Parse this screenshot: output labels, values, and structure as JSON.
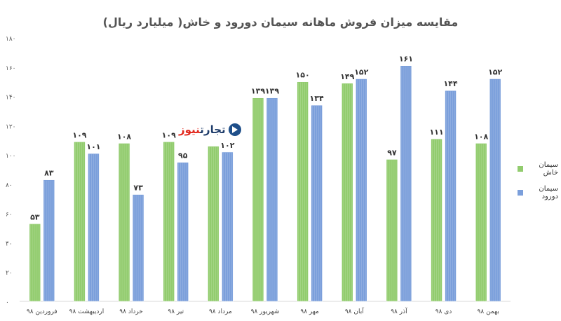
{
  "chart_data": {
    "type": "bar",
    "title": "مقایسه میزان فروش ماهانه سیمان دورود و خاش( میلیارد ریال)",
    "xlabel": "",
    "ylabel": "",
    "ylim": [
      0,
      180
    ],
    "yticks": [
      0,
      20,
      40,
      60,
      80,
      100,
      120,
      140,
      160,
      180
    ],
    "ytick_labels": [
      "۰",
      "۲۰",
      "۴۰",
      "۶۰",
      "۸۰",
      "۱۰۰",
      "۱۲۰",
      "۱۴۰",
      "۱۶۰",
      "۱۸۰"
    ],
    "grid": false,
    "legend_position": "right",
    "categories": [
      "فروردین ۹۸",
      "اردیبهشت ۹۸",
      "خرداد ۹۸",
      "تیر ۹۸",
      "مرداد ۹۸",
      "شهریور ۹۸",
      "مهر ۹۸",
      "آبان ۹۸",
      "آذر ۹۸",
      "دی ۹۸",
      "بهمن ۹۸"
    ],
    "series": [
      {
        "name": "سیمان خاش",
        "color": "#92cc6e",
        "values": [
          53,
          109,
          108,
          109,
          106,
          139,
          150,
          149,
          97,
          111,
          108
        ],
        "labels": [
          "۵۳",
          "۱۰۹",
          "۱۰۸",
          "۱۰۹",
          "",
          "۱۳۹",
          "۱۵۰",
          "۱۴۹",
          "۹۷",
          "۱۱۱",
          "۱۰۸"
        ]
      },
      {
        "name": "سیمان دورود",
        "color": "#7b9fdb",
        "values": [
          83,
          101,
          73,
          95,
          102,
          139,
          134,
          152,
          161,
          144,
          152
        ],
        "labels": [
          "۸۳",
          "۱۰۱",
          "۷۳",
          "۹۵",
          "۱۰۲",
          "۱۳۹",
          "۱۳۴",
          "۱۵۲",
          "۱۶۱",
          "۱۴۴",
          "۱۵۲"
        ]
      }
    ]
  },
  "logo": {
    "part1": "تجارت",
    "part2": "نیوز"
  }
}
